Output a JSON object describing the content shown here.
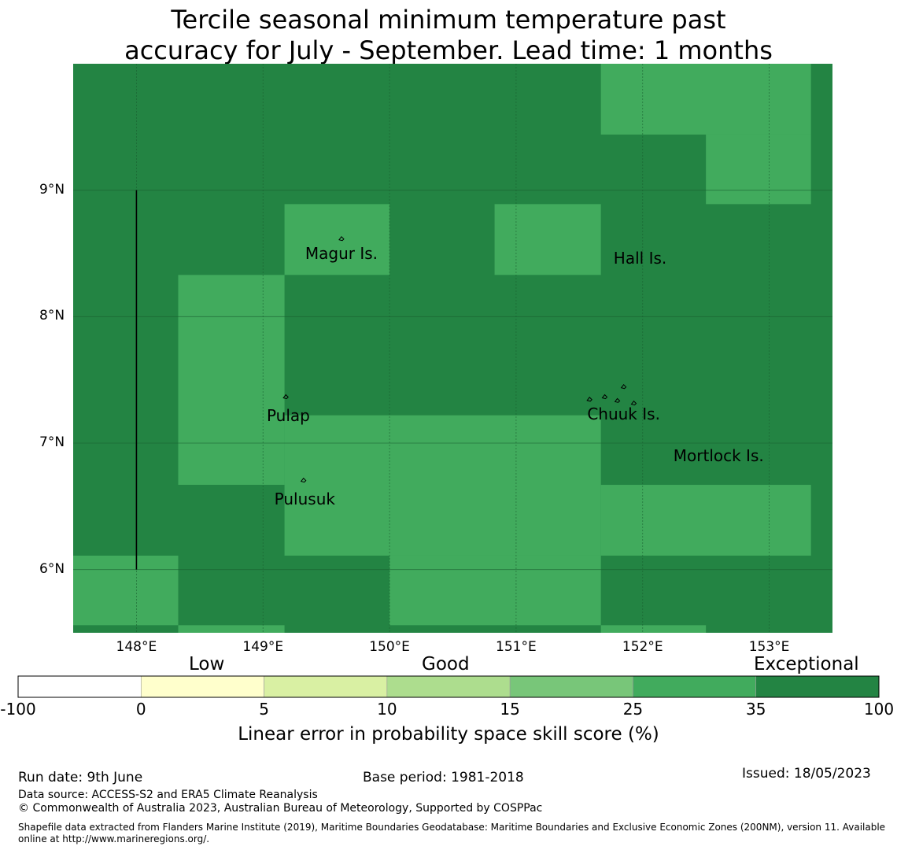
{
  "title": {
    "line1": "Tercile seasonal minimum temperature past",
    "line2": "accuracy for July - September. Lead time: 1 months"
  },
  "colors": {
    "exceptional": "#238443",
    "cat_25_35": "#41ab5d",
    "grid_line": "#1a5e30",
    "boundary_line": "#000000"
  },
  "map": {
    "lon_range": [
      147.5,
      153.5
    ],
    "lat_range": [
      5.5,
      10.0
    ],
    "lat_ticks": [
      {
        "value": 9,
        "label": "9°N"
      },
      {
        "value": 8,
        "label": "8°N"
      },
      {
        "value": 7,
        "label": "7°N"
      },
      {
        "value": 6,
        "label": "6°N"
      }
    ],
    "lon_ticks": [
      {
        "value": 148,
        "label": "148°E"
      },
      {
        "value": 149,
        "label": "149°E"
      },
      {
        "value": 150,
        "label": "150°E"
      },
      {
        "value": 151,
        "label": "151°E"
      },
      {
        "value": 152,
        "label": "152°E"
      },
      {
        "value": 153,
        "label": "153°E"
      }
    ],
    "skill_cells_25_35": [
      {
        "lon": [
          151.67,
          153.33
        ],
        "lat": [
          9.44,
          10.0
        ]
      },
      {
        "lon": [
          152.5,
          153.33
        ],
        "lat": [
          8.89,
          9.44
        ]
      },
      {
        "lon": [
          149.17,
          150.0
        ],
        "lat": [
          8.33,
          8.89
        ]
      },
      {
        "lon": [
          150.83,
          151.67
        ],
        "lat": [
          8.33,
          8.89
        ]
      },
      {
        "lon": [
          148.33,
          149.17
        ],
        "lat": [
          6.67,
          8.33
        ]
      },
      {
        "lon": [
          149.17,
          151.67
        ],
        "lat": [
          6.11,
          7.22
        ]
      },
      {
        "lon": [
          151.67,
          153.33
        ],
        "lat": [
          6.11,
          6.67
        ]
      },
      {
        "lon": [
          147.5,
          148.33
        ],
        "lat": [
          5.56,
          6.11
        ]
      },
      {
        "lon": [
          150.0,
          151.67
        ],
        "lat": [
          5.56,
          6.11
        ]
      },
      {
        "lon": [
          148.33,
          149.17
        ],
        "lat": [
          5.5,
          5.56
        ]
      },
      {
        "lon": [
          151.67,
          152.5
        ],
        "lat": [
          5.5,
          5.56
        ]
      }
    ],
    "boundary_segment": {
      "lon": 148.0,
      "lat": [
        6.0,
        9.0
      ]
    },
    "places": [
      {
        "name": "Magur Is.",
        "lon": 149.62,
        "lat": 8.5
      },
      {
        "name": "Hall Is.",
        "lon": 151.98,
        "lat": 8.46
      },
      {
        "name": "Pulap",
        "lon": 149.2,
        "lat": 7.22
      },
      {
        "name": "Chuuk Is.",
        "lon": 151.85,
        "lat": 7.23
      },
      {
        "name": "Mortlock Is.",
        "lon": 152.6,
        "lat": 6.9
      },
      {
        "name": "Pulusuk",
        "lon": 149.33,
        "lat": 6.56
      }
    ]
  },
  "colorbar": {
    "category_labels": {
      "low": "Low",
      "good": "Good",
      "exceptional": "Exceptional"
    },
    "bins": [
      {
        "from": "-100",
        "to": "0",
        "color": "#ffffff"
      },
      {
        "from": "0",
        "to": "5",
        "color": "#ffffcc"
      },
      {
        "from": "5",
        "to": "10",
        "color": "#d9f0a3"
      },
      {
        "from": "10",
        "to": "15",
        "color": "#addd8e"
      },
      {
        "from": "15",
        "to": "25",
        "color": "#78c679"
      },
      {
        "from": "25",
        "to": "35",
        "color": "#41ab5d"
      },
      {
        "from": "35",
        "to": "100",
        "color": "#238443"
      }
    ],
    "tick_labels": [
      "-100",
      "0",
      "5",
      "10",
      "15",
      "25",
      "35",
      "100"
    ],
    "title": "Linear error in probability space skill score (%)"
  },
  "footer": {
    "run_date": "Run date: 9th June",
    "base_period": "Base period: 1981-2018",
    "issued": "Issued: 18/05/2023",
    "data_source": "Data source: ACCESS-S2 and ERA5 Climate Reanalysis",
    "copyright": "© Commonwealth of Australia 2023, Australian Bureau of Meteorology, Supported by COSPPac",
    "shapefile_line1": "Shapefile data extracted from Flanders Marine Institute (2019), Maritime Boundaries Geodatabase: Maritime Boundaries and Exclusive Economic Zones (200NM), version 11. Available",
    "shapefile_line2": "online at http://www.marineregions.org/."
  }
}
